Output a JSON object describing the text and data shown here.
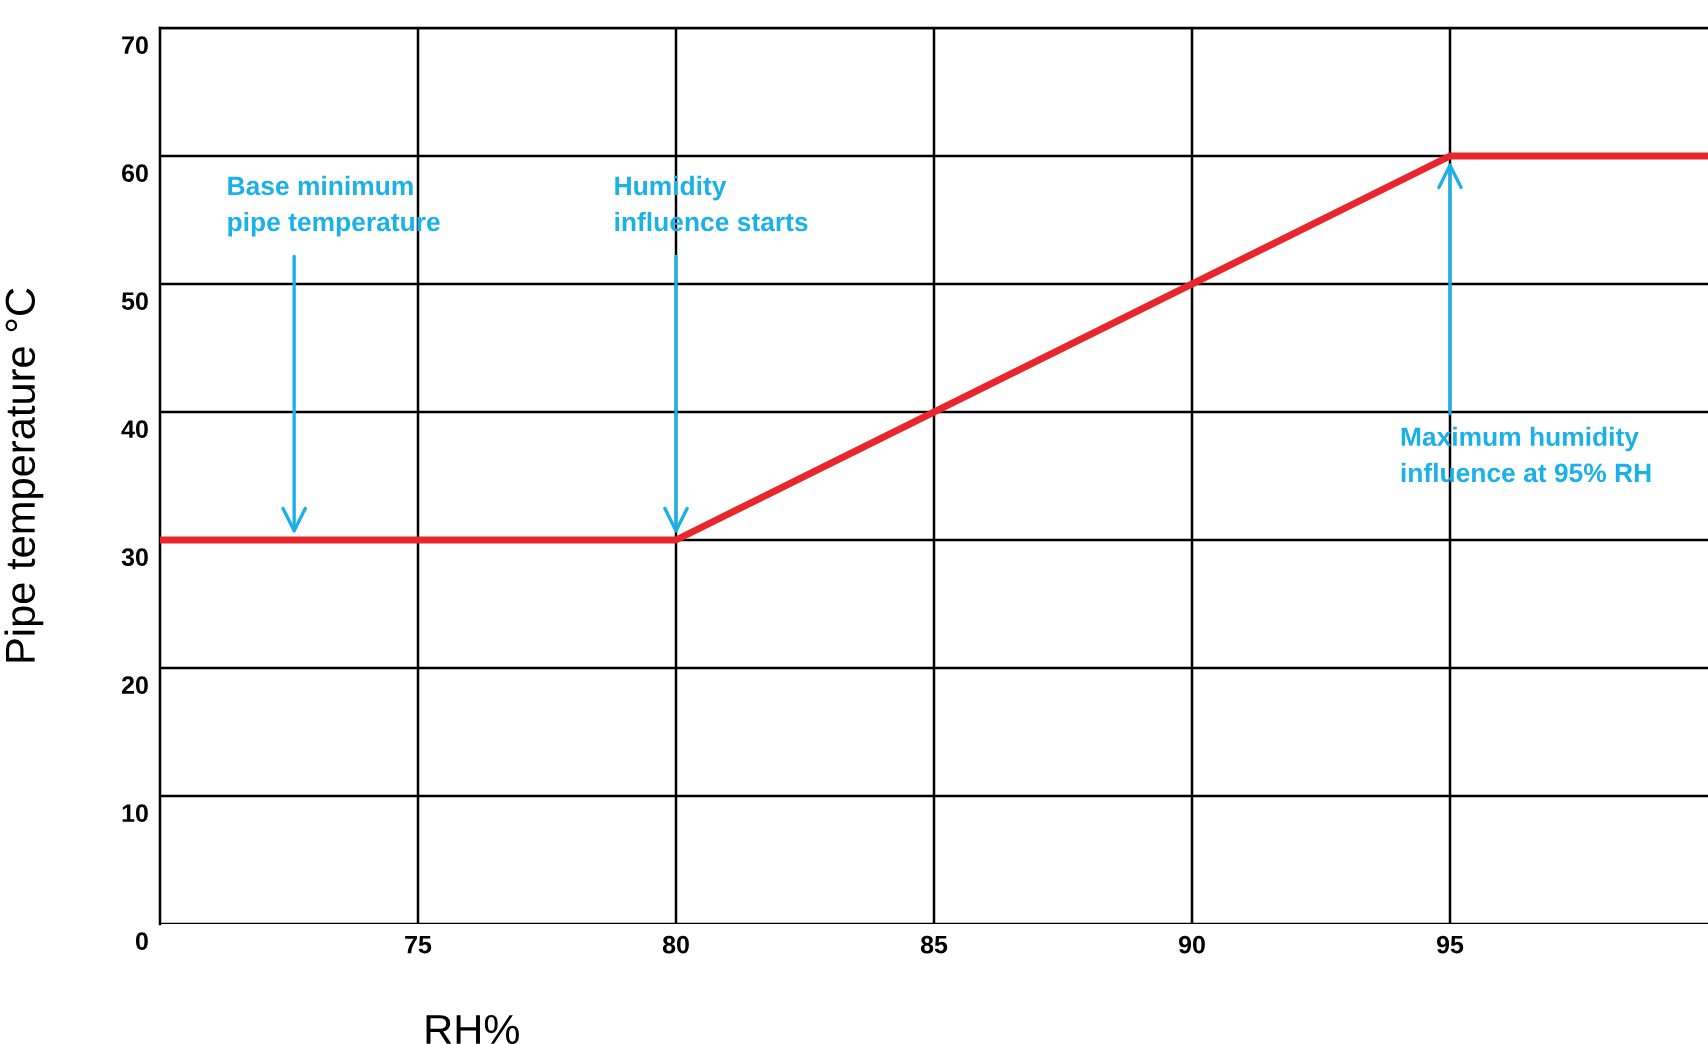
{
  "chart_data": {
    "type": "line",
    "xlabel": "RH%",
    "ylabel": "Pipe temperature °C",
    "x": [
      70,
      80,
      95,
      100
    ],
    "series": [
      {
        "color": "#e8262b",
        "values": [
          30,
          30,
          60,
          60
        ]
      }
    ],
    "xlim": [
      70,
      100
    ],
    "ylim": [
      0,
      70
    ],
    "xticks": [
      75,
      80,
      85,
      90,
      95
    ],
    "yticks": [
      0,
      10,
      20,
      30,
      40,
      50,
      60,
      70
    ],
    "grid": true,
    "marker": "none",
    "line_style": "solid",
    "annotations": [
      {
        "text": "Base minimum\npipe temperature",
        "x": 72.6,
        "y": 30
      },
      {
        "text": "Humidity\ninfluence starts",
        "x": 80,
        "y": 30
      },
      {
        "text": "Maximum humidity\ninfluence at 95% RH",
        "x": 95,
        "y": 60
      }
    ]
  }
}
